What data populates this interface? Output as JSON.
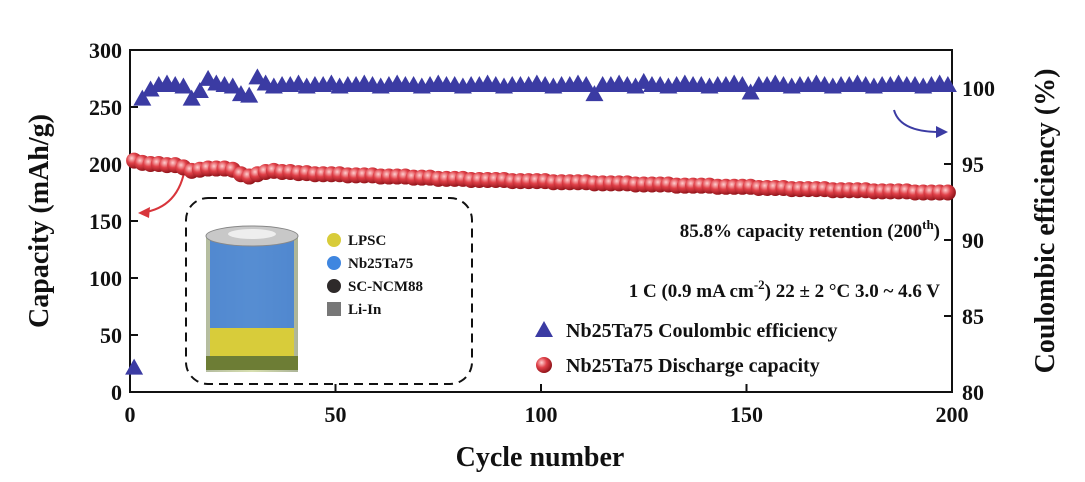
{
  "chart_data": {
    "type": "scatter",
    "xlabel": "Cycle number",
    "ylabel": "Capacity (mAh/g)",
    "y2label": "Coulombic efficiency (%)",
    "xlim": [
      0,
      200
    ],
    "xticks": [
      0,
      50,
      100,
      150,
      200
    ],
    "ylim": [
      0,
      300
    ],
    "yticks": [
      0,
      50,
      100,
      150,
      200,
      250,
      300
    ],
    "y2lim": [
      80,
      102.5
    ],
    "y2ticks": [
      80,
      85,
      90,
      95,
      100
    ],
    "legend": "lower right",
    "annotations": [
      {
        "text": "85.8% capacity retention (200",
        "sup": "th",
        "tail": ")"
      },
      {
        "text": "1 C (0.9 mA cm",
        "sup": "-2",
        "tail": ")  22 ± 2 °C  3.0 ~ 4.6 V"
      }
    ],
    "inset_legend": [
      {
        "name": "LPSC",
        "color": "#d8cc3a"
      },
      {
        "name": "Nb25Ta75",
        "color": "#3f86e0"
      },
      {
        "name": "SC-NCM88",
        "color": "#2e2a2a"
      },
      {
        "name": "Li-In",
        "color": "#777777"
      }
    ],
    "x": [
      1,
      3,
      5,
      7,
      9,
      11,
      13,
      15,
      17,
      19,
      21,
      23,
      25,
      27,
      29,
      31,
      33,
      35,
      37,
      39,
      41,
      43,
      45,
      47,
      49,
      51,
      53,
      55,
      57,
      59,
      61,
      63,
      65,
      67,
      69,
      71,
      73,
      75,
      77,
      79,
      81,
      83,
      85,
      87,
      89,
      91,
      93,
      95,
      97,
      99,
      101,
      103,
      105,
      107,
      109,
      111,
      113,
      115,
      117,
      119,
      121,
      123,
      125,
      127,
      129,
      131,
      133,
      135,
      137,
      139,
      141,
      143,
      145,
      147,
      149,
      151,
      153,
      155,
      157,
      159,
      161,
      163,
      165,
      167,
      169,
      171,
      173,
      175,
      177,
      179,
      181,
      183,
      185,
      187,
      189,
      191,
      193,
      195,
      197,
      199
    ],
    "series": [
      {
        "name": "Nb25Ta75 Coulombic efficiency",
        "color": "#3b3ba3",
        "marker": "triangle",
        "axis": "y2",
        "values": [
          81.6,
          99.3,
          99.9,
          100.2,
          100.3,
          100.2,
          100.1,
          99.3,
          99.8,
          100.6,
          100.3,
          100.2,
          100.1,
          99.6,
          99.5,
          100.7,
          100.3,
          100.1,
          100.2,
          100.2,
          100.3,
          100.1,
          100.2,
          100.2,
          100.3,
          100.1,
          100.2,
          100.2,
          100.3,
          100.2,
          100.1,
          100.2,
          100.3,
          100.2,
          100.2,
          100.1,
          100.2,
          100.3,
          100.2,
          100.2,
          100.1,
          100.2,
          100.2,
          100.3,
          100.2,
          100.1,
          100.2,
          100.2,
          100.2,
          100.3,
          100.2,
          100.1,
          100.2,
          100.2,
          100.3,
          100.2,
          99.6,
          100.2,
          100.2,
          100.3,
          100.2,
          100.1,
          100.4,
          100.2,
          100.2,
          100.1,
          100.2,
          100.3,
          100.2,
          100.2,
          100.1,
          100.2,
          100.2,
          100.3,
          100.2,
          99.7,
          100.2,
          100.2,
          100.3,
          100.2,
          100.1,
          100.2,
          100.2,
          100.3,
          100.2,
          100.1,
          100.2,
          100.2,
          100.3,
          100.2,
          100.1,
          100.2,
          100.2,
          100.3,
          100.2,
          100.2,
          100.1,
          100.2,
          100.3,
          100.2
        ]
      },
      {
        "name": "Nb25Ta75  Discharge capacity",
        "color": "#d8353b",
        "marker": "circle",
        "axis": "y",
        "values": [
          203,
          201,
          200,
          200,
          199,
          199,
          197,
          194,
          195,
          196,
          196,
          196,
          195,
          191,
          189,
          191,
          193,
          194,
          193,
          193,
          192,
          192,
          191,
          191,
          191,
          191,
          190,
          190,
          190,
          190,
          189,
          189,
          189,
          189,
          188,
          188,
          188,
          187,
          187,
          187,
          187,
          186,
          186,
          186,
          186,
          186,
          185,
          185,
          185,
          185,
          185,
          184,
          184,
          184,
          184,
          184,
          183,
          183,
          183,
          183,
          183,
          182,
          182,
          182,
          182,
          182,
          181,
          181,
          181,
          181,
          181,
          180,
          180,
          180,
          180,
          180,
          179,
          179,
          179,
          179,
          178,
          178,
          178,
          178,
          178,
          177,
          177,
          177,
          177,
          177,
          176,
          176,
          176,
          176,
          176,
          175,
          175,
          175,
          175,
          175
        ]
      }
    ]
  }
}
